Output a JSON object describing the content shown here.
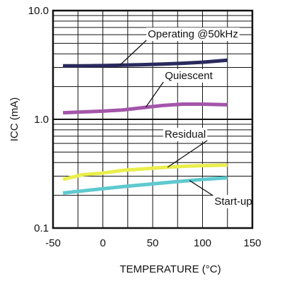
{
  "chart_data": {
    "type": "line",
    "title": "",
    "xlabel": "TEMPERATURE (°C)",
    "ylabel": "ICC (mA)",
    "x_scale": "linear",
    "y_scale": "log",
    "xlim": [
      -50,
      150
    ],
    "ylim": [
      0.1,
      10.0
    ],
    "x_ticks": [
      -50,
      0,
      50,
      100,
      150
    ],
    "x_tick_labels": [
      "-50",
      "0",
      "50",
      "100",
      "150"
    ],
    "y_ticks": [
      0.1,
      1.0,
      10.0
    ],
    "y_tick_labels": [
      "0.1",
      "1.0",
      "10.0"
    ],
    "grid": "log-minor horizontal lines, vertical lines at each 25°C",
    "series": [
      {
        "name": "Operating @50kHz",
        "color": "#2b2a5e",
        "x": [
          -40,
          -20,
          0,
          20,
          40,
          60,
          80,
          100,
          125
        ],
        "y": [
          3.1,
          3.1,
          3.12,
          3.15,
          3.18,
          3.22,
          3.28,
          3.35,
          3.5
        ]
      },
      {
        "name": "Quiescent",
        "color": "#a356a9",
        "x": [
          -40,
          -20,
          0,
          20,
          40,
          60,
          80,
          100,
          125
        ],
        "y": [
          1.15,
          1.17,
          1.19,
          1.22,
          1.28,
          1.34,
          1.38,
          1.38,
          1.36
        ]
      },
      {
        "name": "Residual",
        "color": "#eaee4d",
        "x": [
          -40,
          -20,
          0,
          20,
          40,
          60,
          80,
          100,
          125
        ],
        "y": [
          0.28,
          0.31,
          0.32,
          0.34,
          0.35,
          0.36,
          0.37,
          0.375,
          0.38
        ]
      },
      {
        "name": "Start-up",
        "color": "#5ec9cf",
        "x": [
          -40,
          -20,
          0,
          20,
          40,
          60,
          80,
          100,
          125
        ],
        "y": [
          0.21,
          0.22,
          0.23,
          0.24,
          0.25,
          0.26,
          0.27,
          0.28,
          0.29
        ]
      }
    ],
    "annotations": [
      {
        "text": "Operating @50kHz",
        "series": 0
      },
      {
        "text": "Quiescent",
        "series": 1
      },
      {
        "text": "Residual",
        "series": 2
      },
      {
        "text": "Start-up",
        "series": 3
      }
    ]
  }
}
